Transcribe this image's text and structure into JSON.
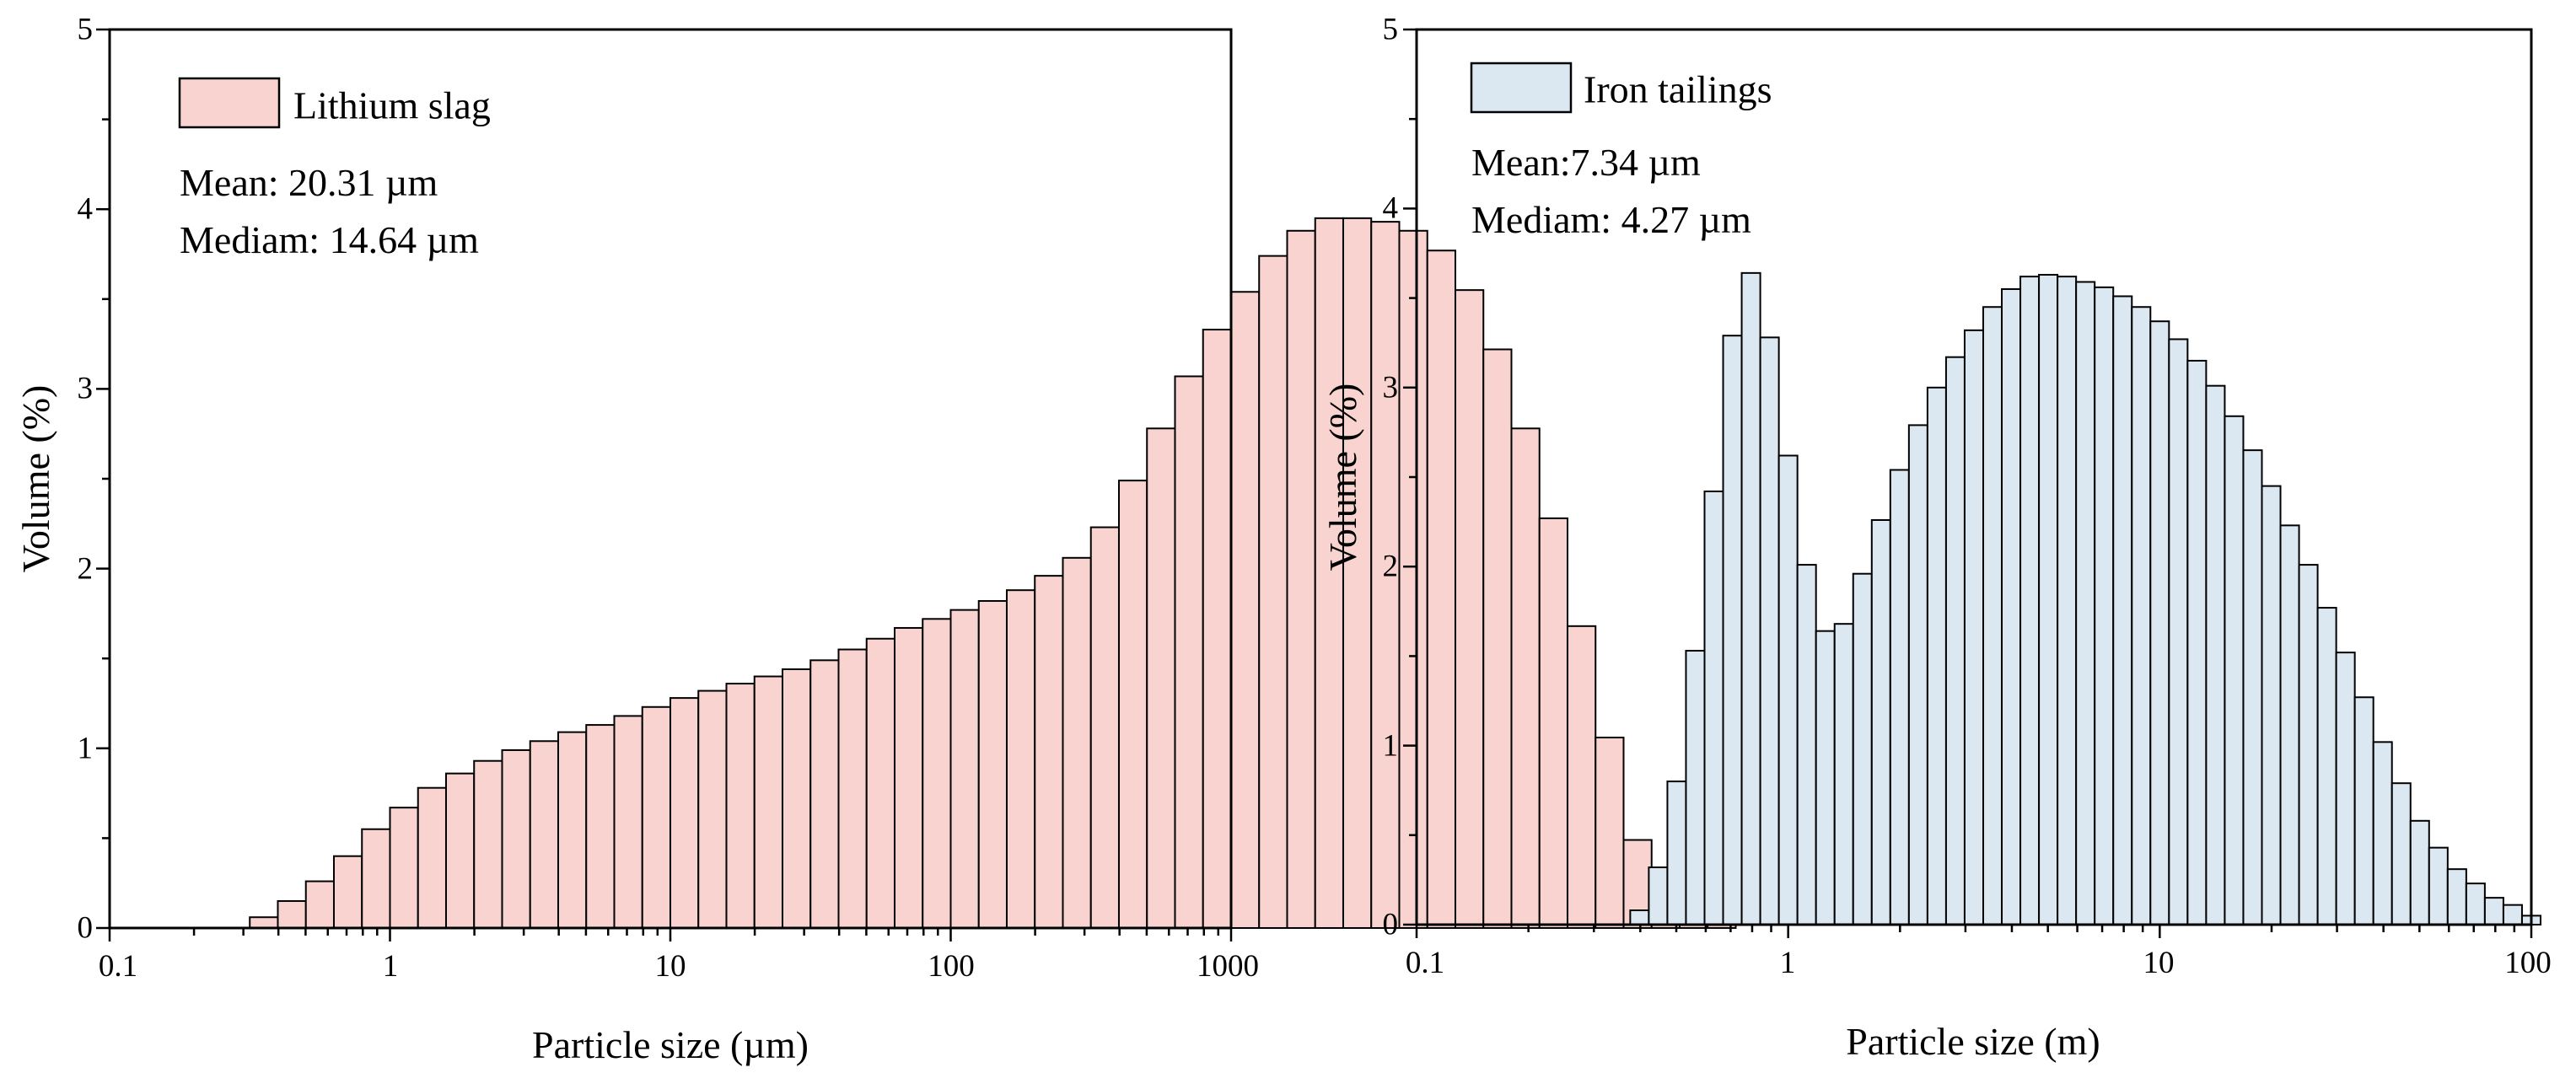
{
  "chart_data": [
    {
      "type": "bar",
      "xscale": "log",
      "xlim": [
        0.1,
        1000
      ],
      "ylim": [
        0,
        5
      ],
      "xlabel": "Particle size (µm)",
      "ylabel": "Volume (%)",
      "xtick_labels": [
        "0.1",
        "1",
        "10",
        "100",
        "1000"
      ],
      "ytick_labels": [
        "0",
        "1",
        "2",
        "3",
        "4",
        "5"
      ],
      "legend": {
        "label": "Lithium slag",
        "position": "top-left"
      },
      "annotations": [
        "Mean: 20.31 µm",
        "Mediam: 14.64 µm"
      ],
      "colors": {
        "fill": "#f8d3cf",
        "edge": "#000000"
      },
      "bins_per_decade": 10,
      "bins_start": 0.3162,
      "series": [
        {
          "name": "Lithium slag",
          "values": [
            0.06,
            0.15,
            0.26,
            0.4,
            0.55,
            0.67,
            0.78,
            0.86,
            0.93,
            0.99,
            1.04,
            1.09,
            1.13,
            1.18,
            1.23,
            1.28,
            1.32,
            1.36,
            1.4,
            1.44,
            1.49,
            1.55,
            1.61,
            1.67,
            1.72,
            1.77,
            1.82,
            1.88,
            1.96,
            2.06,
            2.23,
            2.49,
            2.78,
            3.07,
            3.33,
            3.54,
            3.74,
            3.88,
            3.95,
            3.95,
            3.93,
            3.88,
            3.77,
            3.55,
            3.22,
            2.78,
            2.28,
            1.68,
            1.06,
            0.49,
            0.28,
            0.19,
            0.11
          ]
        }
      ]
    },
    {
      "type": "bar",
      "xscale": "log",
      "xlim": [
        0.1,
        100
      ],
      "ylim": [
        0,
        5
      ],
      "xlabel": "Particle size (m)",
      "ylabel": "Volume (%)",
      "xtick_labels": [
        "0.1",
        "1",
        "10",
        "100"
      ],
      "ytick_labels": [
        "0",
        "1",
        "2",
        "3",
        "4",
        "5"
      ],
      "legend": {
        "label": "Iron tailings",
        "position": "top-left"
      },
      "annotations": [
        "Mean:7.34 µm",
        "Mediam: 4.27 µm"
      ],
      "colors": {
        "fill": "#dce8f1",
        "edge": "#000000"
      },
      "bins_per_decade": 20,
      "bins_start": 0.3758,
      "series": [
        {
          "name": "Iron tailings",
          "values": [
            0.08,
            0.32,
            0.8,
            1.53,
            2.42,
            3.29,
            3.64,
            3.28,
            2.62,
            2.01,
            1.64,
            1.68,
            1.96,
            2.26,
            2.54,
            2.79,
            3.0,
            3.17,
            3.32,
            3.45,
            3.55,
            3.62,
            3.63,
            3.62,
            3.59,
            3.56,
            3.51,
            3.45,
            3.37,
            3.27,
            3.15,
            3.01,
            2.84,
            2.65,
            2.45,
            2.23,
            2.01,
            1.77,
            1.52,
            1.27,
            1.02,
            0.79,
            0.58,
            0.43,
            0.31,
            0.23,
            0.15,
            0.11,
            0.05
          ]
        }
      ]
    }
  ]
}
